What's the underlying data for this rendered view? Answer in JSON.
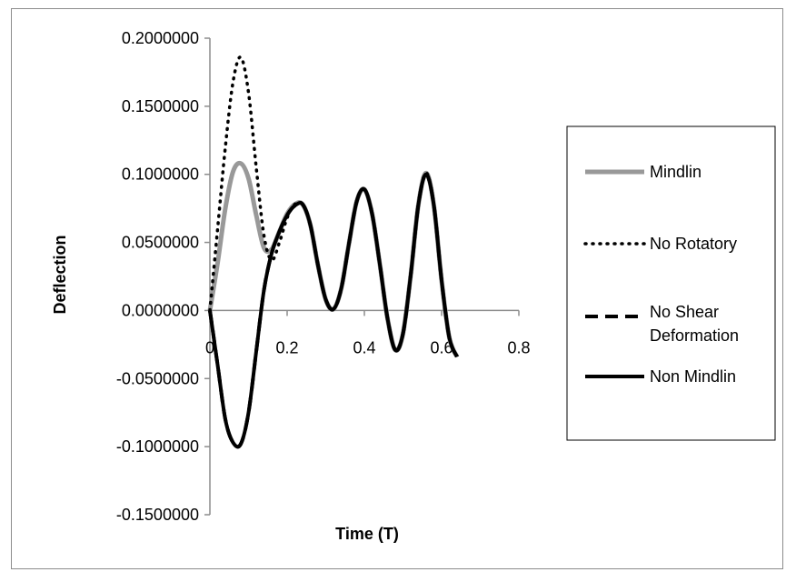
{
  "chart_data": {
    "type": "line",
    "xlabel": "Time (T)",
    "ylabel": "Deflection",
    "xlim": [
      0,
      0.8
    ],
    "ylim": [
      -0.15,
      0.2
    ],
    "xticks": [
      0,
      0.2,
      0.4,
      0.6,
      0.8
    ],
    "xtick_labels": [
      "0",
      "0.2",
      "0.4",
      "0.6",
      "0.8"
    ],
    "yticks": [
      0.2,
      0.15,
      0.1,
      0.05,
      0,
      -0.05,
      -0.1,
      -0.15
    ],
    "ytick_labels": [
      "0.2000000",
      "0.1500000",
      "0.1000000",
      "0.0500000",
      "0.0000000",
      "-0.0500000",
      "-0.1000000",
      "-0.1500000"
    ],
    "grid": false,
    "legend_position": "right",
    "series": [
      {
        "name": "Mindlin",
        "color": "#999999",
        "style": "solid",
        "x": [
          0,
          0.02,
          0.04,
          0.06,
          0.08,
          0.1,
          0.12,
          0.14,
          0.16,
          0.18,
          0.2,
          0.22,
          0.24,
          0.26,
          0.28,
          0.3,
          0.32,
          0.34,
          0.36,
          0.38,
          0.4,
          0.42,
          0.44,
          0.46,
          0.48,
          0.5,
          0.52,
          0.54,
          0.56,
          0.58,
          0.6,
          0.62,
          0.64
        ],
        "y": [
          0.0,
          0.035,
          0.075,
          0.102,
          0.108,
          0.097,
          0.07,
          0.046,
          0.045,
          0.058,
          0.071,
          0.078,
          0.078,
          0.063,
          0.033,
          0.008,
          0.001,
          0.016,
          0.049,
          0.08,
          0.089,
          0.071,
          0.034,
          -0.006,
          -0.029,
          -0.017,
          0.026,
          0.078,
          0.101,
          0.077,
          0.022,
          -0.02,
          -0.034
        ]
      },
      {
        "name": "No Rotatory",
        "color": "#000000",
        "style": "dotted",
        "x": [
          0,
          0.02,
          0.04,
          0.06,
          0.08,
          0.1,
          0.12,
          0.14,
          0.16,
          0.18,
          0.2,
          0.22,
          0.24,
          0.26,
          0.28,
          0.3,
          0.32,
          0.34,
          0.36,
          0.38,
          0.4,
          0.42,
          0.44,
          0.46,
          0.48,
          0.5,
          0.52,
          0.54,
          0.56,
          0.58,
          0.6,
          0.62,
          0.64
        ],
        "y": [
          0.0,
          0.06,
          0.12,
          0.168,
          0.186,
          0.16,
          0.105,
          0.055,
          0.037,
          0.05,
          0.068,
          0.078,
          0.078,
          0.063,
          0.033,
          0.008,
          0.001,
          0.016,
          0.049,
          0.08,
          0.089,
          0.071,
          0.034,
          -0.006,
          -0.029,
          -0.017,
          0.026,
          0.078,
          0.101,
          0.077,
          0.022,
          -0.02,
          -0.034
        ]
      },
      {
        "name": "No Shear Deformation",
        "color": "#000000",
        "style": "dashed",
        "x": [
          0,
          0.02,
          0.04,
          0.06,
          0.08,
          0.1,
          0.12,
          0.14,
          0.16,
          0.18,
          0.2,
          0.22,
          0.24,
          0.26,
          0.28,
          0.3,
          0.32,
          0.34,
          0.36,
          0.38,
          0.4,
          0.42,
          0.44,
          0.46,
          0.48,
          0.5,
          0.52,
          0.54,
          0.56,
          0.58,
          0.6,
          0.62,
          0.64
        ],
        "y": [
          0.0,
          -0.04,
          -0.08,
          -0.097,
          -0.098,
          -0.075,
          -0.03,
          0.015,
          0.042,
          0.058,
          0.07,
          0.077,
          0.078,
          0.063,
          0.033,
          0.008,
          0.001,
          0.016,
          0.049,
          0.08,
          0.089,
          0.071,
          0.034,
          -0.006,
          -0.029,
          -0.017,
          0.026,
          0.078,
          0.1,
          0.077,
          0.022,
          -0.02,
          -0.034
        ]
      },
      {
        "name": "Non Mindlin",
        "color": "#000000",
        "style": "solid",
        "x": [
          0,
          0.02,
          0.04,
          0.06,
          0.08,
          0.1,
          0.12,
          0.14,
          0.16,
          0.18,
          0.2,
          0.22,
          0.24,
          0.26,
          0.28,
          0.3,
          0.32,
          0.34,
          0.36,
          0.38,
          0.4,
          0.42,
          0.44,
          0.46,
          0.48,
          0.5,
          0.52,
          0.54,
          0.56,
          0.58,
          0.6,
          0.62,
          0.64
        ],
        "y": [
          0.0,
          -0.04,
          -0.08,
          -0.097,
          -0.098,
          -0.075,
          -0.03,
          0.015,
          0.042,
          0.058,
          0.07,
          0.077,
          0.078,
          0.063,
          0.033,
          0.008,
          0.001,
          0.016,
          0.049,
          0.08,
          0.089,
          0.071,
          0.034,
          -0.006,
          -0.029,
          -0.017,
          0.026,
          0.078,
          0.1,
          0.077,
          0.022,
          -0.02,
          -0.034
        ]
      }
    ],
    "legend": [
      {
        "lines": [
          "Mindlin"
        ]
      },
      {
        "lines": [
          "No Rotatory"
        ]
      },
      {
        "lines": [
          "No Shear",
          "Deformation"
        ]
      },
      {
        "lines": [
          "Non Mindlin"
        ]
      }
    ]
  }
}
